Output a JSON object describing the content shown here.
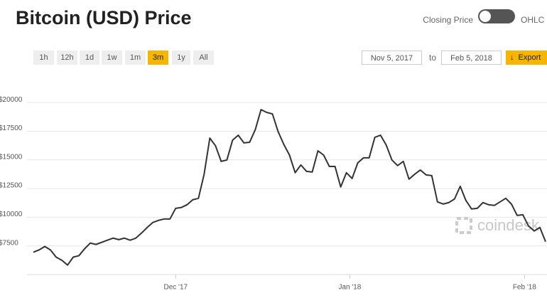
{
  "ui": {
    "title": "Bitcoin (USD) Price",
    "toggle_left": "Closing Price",
    "toggle_right": "OHLC",
    "ranges": [
      "1h",
      "12h",
      "1d",
      "1w",
      "1m",
      "3m",
      "1y",
      "All"
    ],
    "active_range": "3m",
    "date_from": "Nov 5, 2017",
    "date_sep": "to",
    "date_to": "Feb 5, 2018",
    "export": "Export",
    "watermark": "coindesk",
    "accent": "#f7b500"
  },
  "chart_data": {
    "type": "line",
    "color": "#333333",
    "grid": true,
    "values": [
      6700,
      6900,
      7200,
      6900,
      6270,
      6000,
      5580,
      6270,
      6400,
      7000,
      7500,
      7380,
      7560,
      7750,
      7930,
      7800,
      7930,
      7750,
      7930,
      8370,
      8860,
      9300,
      9480,
      9600,
      9600,
      10530,
      10600,
      10840,
      11270,
      11400,
      13500,
      16650,
      15980,
      14620,
      14740,
      16470,
      16900,
      16230,
      16290,
      17400,
      19130,
      18890,
      18760,
      17220,
      16100,
      15170,
      13630,
      14310,
      13750,
      13690,
      15540,
      15170,
      14180,
      14180,
      12390,
      13630,
      13130,
      14490,
      14930,
      14930,
      16720,
      16900,
      16040,
      14740,
      14250,
      14620,
      13070,
      13500,
      13870,
      13440,
      13380,
      11090,
      10900,
      11030,
      11340,
      12450,
      11210,
      10470,
      10530,
      11030,
      10840,
      10780,
      11090,
      11400,
      10900,
      9910,
      9970,
      8990,
      8550,
      8860,
      7620
    ],
    "xlim": [
      0,
      90
    ],
    "xticks": [
      {
        "value": 25,
        "label": "Dec '17"
      },
      {
        "value": 55.6,
        "label": "Jan '18"
      },
      {
        "value": 86.3,
        "label": "Feb '18"
      }
    ],
    "ylim": [
      5000,
      21000
    ],
    "yticks": [
      {
        "value": 7500,
        "label": "$7500"
      },
      {
        "value": 10000,
        "label": "$10000"
      },
      {
        "value": 12500,
        "label": "$12500"
      },
      {
        "value": 15000,
        "label": "$15000"
      },
      {
        "value": 17500,
        "label": "$17500"
      },
      {
        "value": 20000,
        "label": "$20000"
      }
    ]
  }
}
